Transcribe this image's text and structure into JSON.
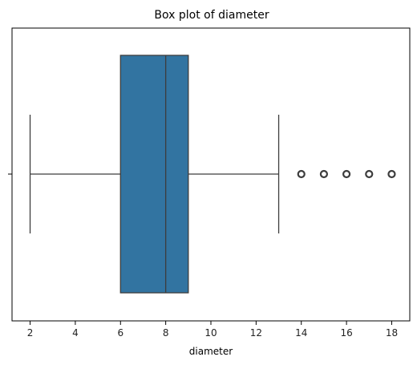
{
  "chart_data": {
    "type": "box",
    "title": "Box plot of diameter",
    "xlabel": "diameter",
    "ylabel": "",
    "xlim": [
      1.2,
      18.8
    ],
    "xticks": [
      2,
      4,
      6,
      8,
      10,
      12,
      14,
      16,
      18
    ],
    "grid": false,
    "orientation": "horizontal",
    "box": {
      "whisker_low": 2,
      "q1": 6,
      "median": 8,
      "q3": 9,
      "whisker_high": 13,
      "outliers": [
        14,
        15,
        16,
        17,
        18
      ]
    },
    "colors": {
      "box_fill": "#3274a1",
      "lines": "#3d3d3d",
      "axis": "#000000"
    }
  }
}
